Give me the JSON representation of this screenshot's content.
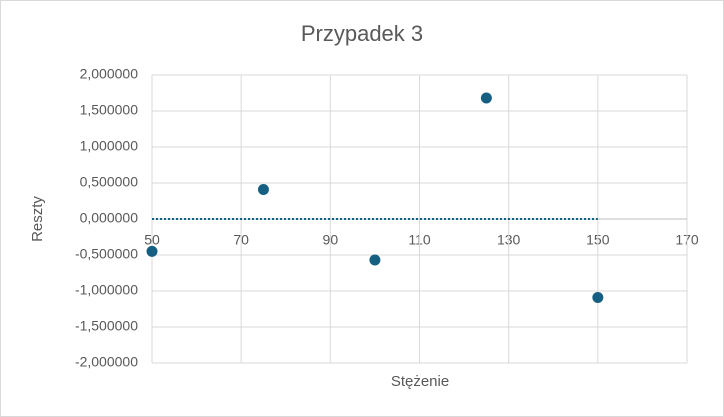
{
  "chart_data": {
    "type": "scatter",
    "title": "Przypadek 3",
    "x_label": "Stężenie",
    "y_label": "Reszty",
    "x": [
      50,
      75,
      100,
      125,
      150
    ],
    "values": [
      -0.45,
      0.41,
      -0.57,
      1.68,
      -1.09
    ],
    "color": "#156082",
    "trendline": {
      "x": [
        50,
        150
      ],
      "values": [
        0,
        0
      ],
      "color": "#156082",
      "style": "dotted"
    },
    "xlim": [
      50,
      170
    ],
    "xticks": [
      50,
      70,
      90,
      110,
      130,
      150,
      170
    ],
    "ylim": [
      -2,
      2
    ],
    "yticks": [
      {
        "value": -2,
        "label": "-2,000000"
      },
      {
        "value": -1.5,
        "label": "-1,500000"
      },
      {
        "value": -1,
        "label": "-1,000000"
      },
      {
        "value": -0.5,
        "label": "-0,500000"
      },
      {
        "value": 0,
        "label": "0,000000"
      },
      {
        "value": 0.5,
        "label": "0,500000"
      },
      {
        "value": 1,
        "label": "1,000000"
      },
      {
        "value": 1.5,
        "label": "1,500000"
      },
      {
        "value": 2,
        "label": "2,000000"
      }
    ],
    "grid": true
  }
}
